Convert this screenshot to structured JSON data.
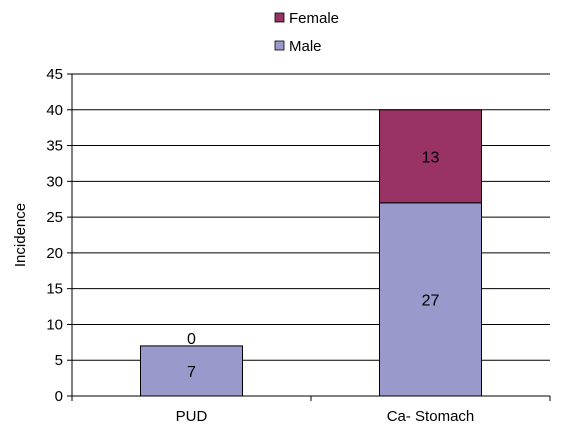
{
  "chart_data": {
    "type": "bar",
    "stacked": true,
    "categories": [
      "PUD",
      "Ca- Stomach"
    ],
    "series": [
      {
        "name": "Male",
        "values": [
          7,
          27
        ],
        "color": "#9999cc"
      },
      {
        "name": "Female",
        "values": [
          0,
          13
        ],
        "color": "#993366"
      }
    ],
    "data_labels": [
      [
        "7",
        "27"
      ],
      [
        "0",
        "13"
      ]
    ],
    "ylabel": "Incidence",
    "ylim": [
      0,
      45
    ],
    "yticks": [
      "0",
      "5",
      "10",
      "15",
      "20",
      "25",
      "30",
      "35",
      "40",
      "45"
    ],
    "grid": "horizontal",
    "legend": {
      "position": "top",
      "entries": [
        "Female",
        "Male"
      ]
    }
  }
}
